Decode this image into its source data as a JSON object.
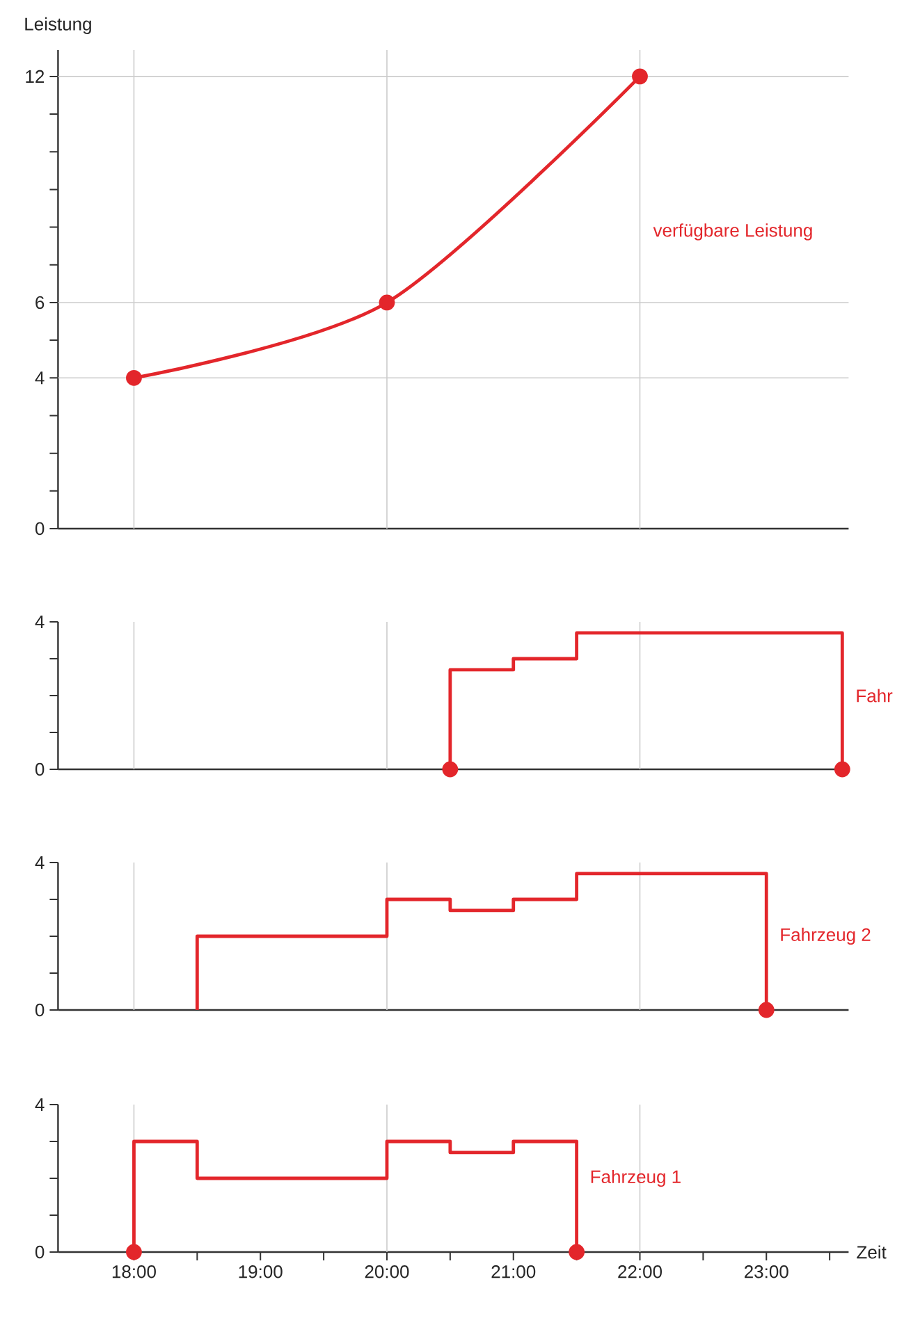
{
  "chart_data": [
    {
      "type": "line",
      "ylabel": "Leistung",
      "xlim": [
        17.4,
        23.65
      ],
      "ylim": [
        0,
        12.7
      ],
      "tick_labels": "y",
      "yticks": [
        0,
        {
          "value": 1,
          "label": null
        },
        {
          "value": 2,
          "label": null
        },
        {
          "value": 3,
          "label": null
        },
        4,
        {
          "value": 5,
          "label": null
        },
        6,
        {
          "value": 7,
          "label": null
        },
        {
          "value": 8,
          "label": null
        },
        {
          "value": 9,
          "label": null
        },
        {
          "value": 10,
          "label": null
        },
        {
          "value": 11,
          "label": null
        },
        12
      ],
      "ref_lines": [
        {
          "axis": "x",
          "value": 18,
          "color": "#cccccc"
        },
        {
          "axis": "x",
          "value": 20,
          "color": "#cccccc"
        },
        {
          "axis": "x",
          "value": 22,
          "color": "#cccccc"
        },
        {
          "axis": "y",
          "value": 4,
          "color": "#cccccc"
        },
        {
          "axis": "y",
          "value": 6,
          "color": "#cccccc"
        },
        {
          "axis": "y",
          "value": 12,
          "color": "#cccccc"
        }
      ],
      "series": [
        {
          "name": "verfügbare Leistung",
          "color": "#e3262b",
          "marker": "circle",
          "x": [
            18,
            20,
            22
          ],
          "values": [
            4,
            6,
            12
          ]
        }
      ]
    },
    {
      "type": "step",
      "xlim": [
        17.4,
        23.65
      ],
      "ylim": [
        0,
        4
      ],
      "tick_labels": "y",
      "yticks": [
        0,
        {
          "value": 1,
          "label": null
        },
        {
          "value": 2,
          "label": null
        },
        {
          "value": 3,
          "label": null
        },
        4
      ],
      "ref_lines": [
        {
          "axis": "x",
          "value": 18,
          "color": "#cccccc"
        },
        {
          "axis": "x",
          "value": 20,
          "color": "#cccccc"
        },
        {
          "axis": "x",
          "value": 22,
          "color": "#cccccc"
        }
      ],
      "series": [
        {
          "name": "Fahr",
          "color": "#e3262b",
          "x": [
            20.5,
            20.5,
            21,
            21.5,
            23.6
          ],
          "values": [
            0,
            2.7,
            3,
            3.7,
            0
          ]
        },
        {
          "type": "scatter",
          "color": "#e3262b",
          "marker": "circle",
          "x": [
            20.5,
            23.6
          ],
          "values": [
            0,
            0
          ]
        }
      ]
    },
    {
      "type": "step",
      "xlim": [
        17.4,
        23.65
      ],
      "ylim": [
        0,
        4
      ],
      "tick_labels": "y",
      "yticks": [
        0,
        {
          "value": 1,
          "label": null
        },
        {
          "value": 2,
          "label": null
        },
        {
          "value": 3,
          "label": null
        },
        4
      ],
      "ref_lines": [
        {
          "axis": "x",
          "value": 18,
          "color": "#cccccc"
        },
        {
          "axis": "x",
          "value": 20,
          "color": "#cccccc"
        },
        {
          "axis": "x",
          "value": 22,
          "color": "#cccccc"
        }
      ],
      "series": [
        {
          "name": "Fahrzeug 2",
          "color": "#e3262b",
          "x": [
            18.5,
            18.5,
            20,
            20.5,
            21,
            21.5,
            23
          ],
          "values": [
            0,
            2,
            3,
            2.7,
            3,
            3.7,
            0
          ]
        },
        {
          "type": "scatter",
          "color": "#e3262b",
          "marker": "circle",
          "x": [
            23
          ],
          "values": [
            0
          ]
        }
      ]
    },
    {
      "type": "step",
      "xlabel": "Zeit",
      "xlim": [
        17.4,
        23.65
      ],
      "ylim": [
        0,
        4
      ],
      "yticks": [
        0,
        {
          "value": 1,
          "label": null
        },
        {
          "value": 2,
          "label": null
        },
        {
          "value": 3,
          "label": null
        },
        4
      ],
      "xticks": [
        {
          "value": 18,
          "label": "18:00"
        },
        {
          "value": 18.5,
          "label": null
        },
        {
          "value": 19,
          "label": "19:00"
        },
        {
          "value": 19.5,
          "label": null
        },
        {
          "value": 20,
          "label": "20:00"
        },
        {
          "value": 20.5,
          "label": null
        },
        {
          "value": 21,
          "label": "21:00"
        },
        {
          "value": 21.5,
          "label": null
        },
        {
          "value": 22,
          "label": "22:00"
        },
        {
          "value": 22.5,
          "label": null
        },
        {
          "value": 23,
          "label": "23:00"
        },
        {
          "value": 23.5,
          "label": null
        }
      ],
      "ref_lines": [
        {
          "axis": "x",
          "value": 18,
          "color": "#cccccc"
        },
        {
          "axis": "x",
          "value": 20,
          "color": "#cccccc"
        },
        {
          "axis": "x",
          "value": 22,
          "color": "#cccccc"
        }
      ],
      "series": [
        {
          "name": "Fahrzeug 1",
          "color": "#e3262b",
          "x": [
            18,
            18,
            18.5,
            20,
            20.5,
            21,
            21.5
          ],
          "values": [
            0,
            3,
            2,
            3,
            2.7,
            3,
            0
          ]
        },
        {
          "type": "scatter",
          "color": "#e3262b",
          "marker": "circle",
          "x": [
            18,
            21.5
          ],
          "values": [
            0,
            0
          ]
        }
      ]
    }
  ]
}
